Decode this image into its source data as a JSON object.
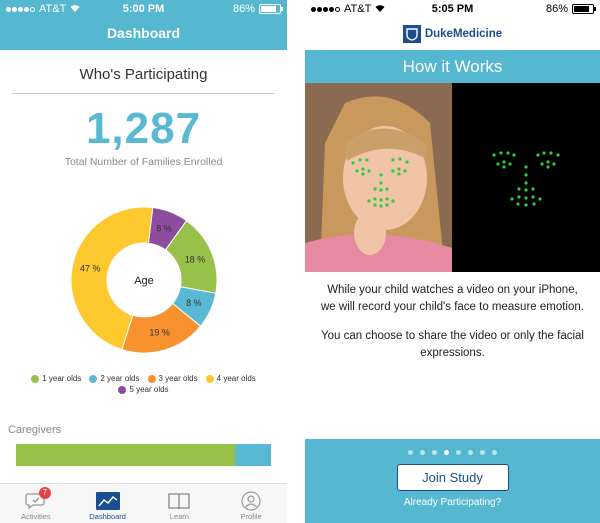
{
  "left": {
    "status": {
      "carrier": "AT&T",
      "time": "5:00 PM",
      "battery": "86%",
      "battery_level": 0.86
    },
    "nav_title": "Dashboard",
    "section_title": "Who's Participating",
    "total": "1,287",
    "total_caption": "Total Number of Families Enrolled",
    "chart_center": "Age",
    "chart_data": {
      "type": "pie",
      "categories": [
        "1 year olds",
        "2 year olds",
        "3 year olds",
        "4 year olds",
        "5 year olds"
      ],
      "values": [
        18,
        8,
        19,
        47,
        8
      ],
      "colors": [
        "#98c14a",
        "#5ab9d2",
        "#f7922e",
        "#fdc92f",
        "#8d4c9e"
      ],
      "labels": [
        "18 %",
        "8 %",
        "19 %",
        "47 %",
        "8 %"
      ]
    },
    "caregivers_label": "Caregivers",
    "caregivers_bar": {
      "primary_fraction": 0.86,
      "colors": [
        "#98c14a",
        "#5ab9d2"
      ]
    },
    "tabs": [
      {
        "label": "Activities",
        "icon": "chat-bubble-icon",
        "badge": "7"
      },
      {
        "label": "Dashboard",
        "icon": "chart-icon",
        "active": true
      },
      {
        "label": "Learn",
        "icon": "book-icon"
      },
      {
        "label": "Profile",
        "icon": "person-icon"
      }
    ]
  },
  "right": {
    "status": {
      "carrier": "AT&T",
      "time": "5:05 PM",
      "battery": "86%",
      "battery_level": 0.86
    },
    "brand": "DukeMedicine",
    "banner": "How it Works",
    "paragraph1": "While your child watches a video on your iPhone, we will record your child's face to measure emotion.",
    "paragraph2": "You can choose to share the video or only the facial expressions.",
    "pager": {
      "count": 8,
      "active": 3
    },
    "join_label": "Join Study",
    "already_label": "Already Participating?"
  }
}
